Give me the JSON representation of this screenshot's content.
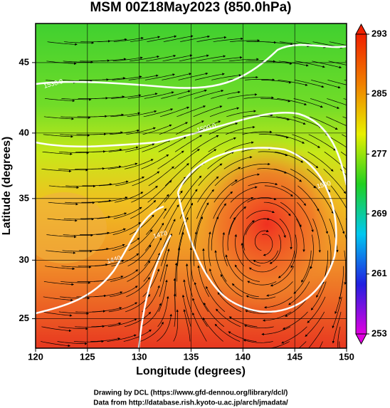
{
  "chart_data": {
    "type": "map",
    "title": "MSM 00Z18May2023 (850.0hPa)",
    "xlabel": "Longitude (degrees)",
    "ylabel": "Latitude  (degrees)",
    "xlim": [
      120,
      150
    ],
    "ylim": [
      22.4,
      47.6
    ],
    "xticks": [
      120,
      125,
      130,
      135,
      140,
      145,
      150
    ],
    "yticks": [
      25,
      30,
      35,
      40,
      45
    ],
    "colorbar": {
      "lim": [
        253,
        293
      ],
      "ticks": [
        253,
        261,
        269,
        277,
        285,
        293
      ],
      "colors": [
        "#e000e0",
        "#2020e0",
        "#00c8f0",
        "#20d020",
        "#e8f000",
        "#f08000",
        "#f02000"
      ]
    },
    "contour_labels": [
      "1530.0",
      "1500.0",
      "1470",
      "1440",
      "1500"
    ],
    "credits": [
      "Drawing by DCL (https://www.gfd-dennou.org/library/dcl/)",
      "Data from http://database.rish.kyoto-u.ac.jp/arch/jmadata/"
    ]
  }
}
